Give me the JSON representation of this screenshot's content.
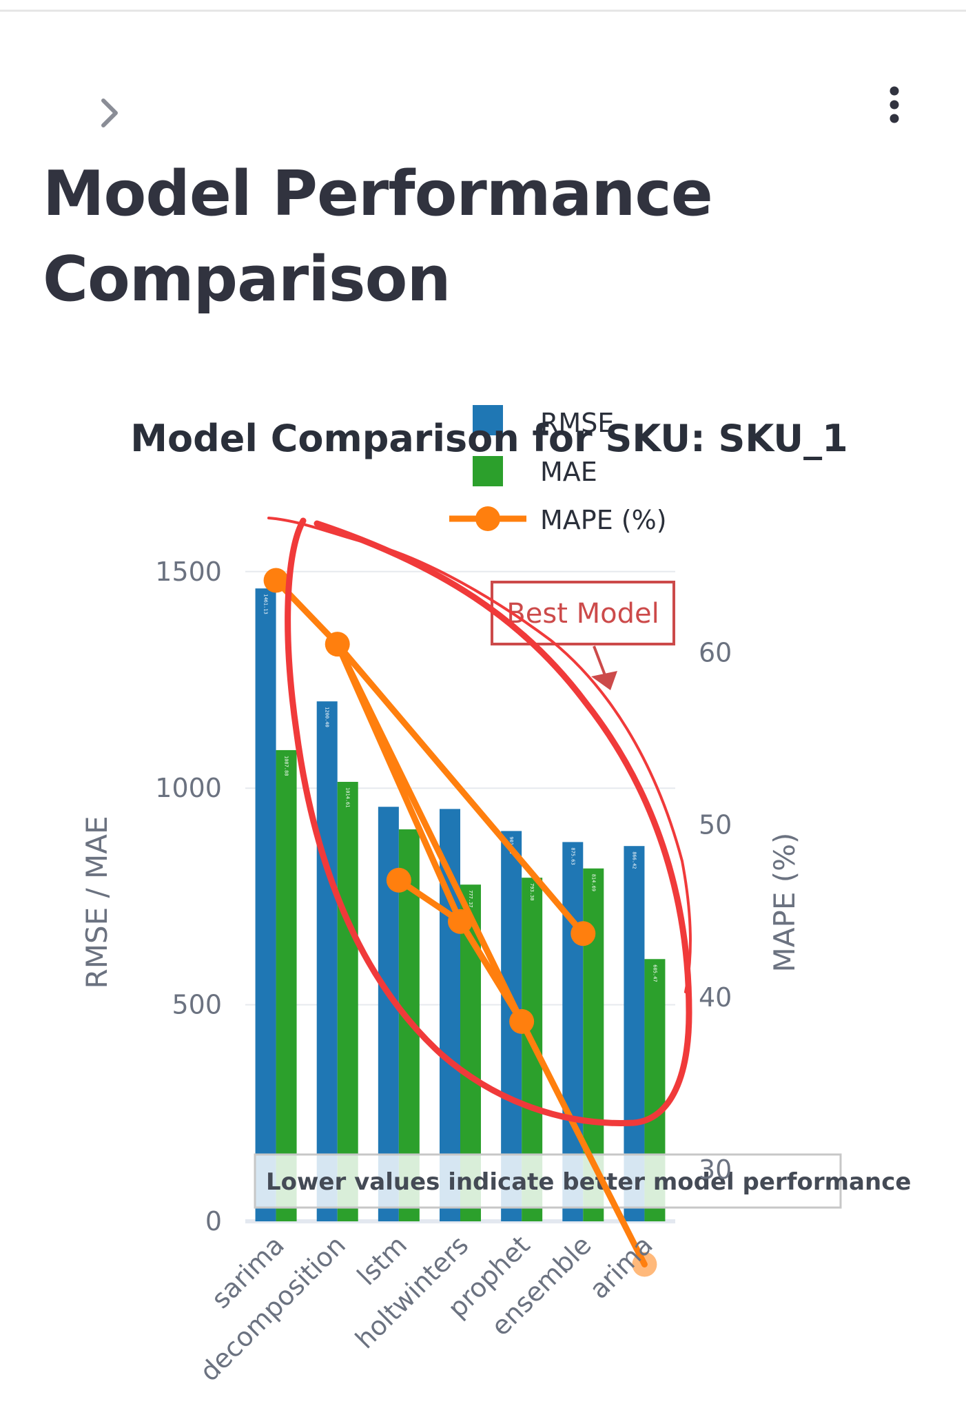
{
  "page": {
    "title": "Model Performance Comparison",
    "expand_icon": "chevron-right-icon",
    "menu_icon": "more-vertical-icon"
  },
  "chart_data": {
    "type": "bar",
    "title": "Model Comparison for SKU: SKU_1",
    "categories": [
      "sarima",
      "decomposition",
      "lstm",
      "holtwinters",
      "prophet",
      "ensemble",
      "arima"
    ],
    "series": [
      {
        "name": "RMSE",
        "axis": "left",
        "type": "bar",
        "color": "#1f77b4",
        "values": [
          1461.13,
          1200.4,
          957.0,
          952.0,
          901.1,
          875.63,
          866.42
        ],
        "labels": [
          "1461.13",
          "1200.40",
          "",
          "",
          "901.10",
          "875.63",
          "866.42"
        ]
      },
      {
        "name": "MAE",
        "axis": "left",
        "type": "bar",
        "color": "#2ca02c",
        "values": [
          1087.88,
          1014.61,
          905.0,
          777.37,
          793.3,
          814.69,
          605.47
        ],
        "labels": [
          "1087.88",
          "1014.61",
          "",
          "777.37",
          "793.30",
          "814.69",
          "605.47"
        ]
      },
      {
        "name": "MAPE (%)",
        "axis": "right",
        "type": "line",
        "color": "#ff7f0e",
        "points": [
          {
            "category": "sarima",
            "value": 64.2
          },
          {
            "category": "decomposition",
            "value": 60.5
          },
          {
            "category": "holtwinters",
            "value": 44.4
          },
          {
            "category": "prophet",
            "value": 38.6
          },
          {
            "category": "decomposition",
            "value": 60.5
          },
          {
            "category": "ensemble",
            "value": 43.7
          }
        ],
        "extra_points": [
          {
            "category": "lstm",
            "value": 46.8
          },
          {
            "category": "holtwinters",
            "value": 44.4
          },
          {
            "category": "prophet",
            "value": 38.6
          },
          {
            "category": "arima",
            "value": 24.5
          }
        ]
      }
    ],
    "y_left": {
      "label": "RMSE / MAE",
      "ticks": [
        0,
        500,
        1000,
        1500
      ],
      "range": [
        0,
        1611
      ]
    },
    "y_right": {
      "label": "MAPE (%)",
      "ticks": [
        30,
        40,
        50,
        60
      ],
      "range": [
        27,
        67.5
      ]
    },
    "grid": true,
    "legend": {
      "placement": "top-center"
    },
    "annotations": {
      "best_model": "Best Model",
      "note": "Lower values indicate better model performance"
    }
  }
}
